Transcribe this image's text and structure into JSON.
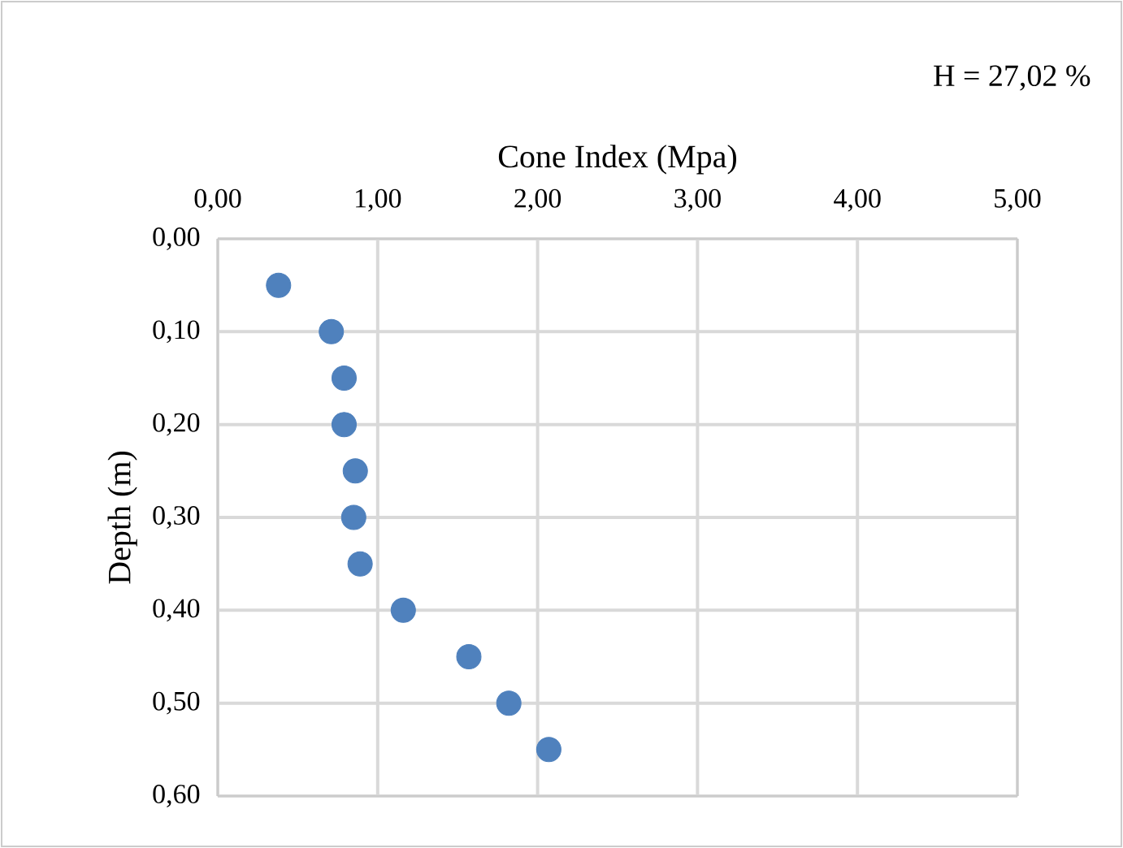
{
  "chart_data": {
    "type": "scatter",
    "xlabel": "Cone Index (Mpa)",
    "ylabel": "Depth (m)",
    "annotations": [
      "H = 27,02 %"
    ],
    "series": [
      {
        "color": "#4f81bd",
        "x": [
          0.38,
          0.71,
          0.79,
          0.79,
          0.86,
          0.85,
          0.89,
          1.16,
          1.57,
          1.82,
          2.07
        ],
        "values": [
          0.05,
          0.1,
          0.15,
          0.2,
          0.25,
          0.3,
          0.35,
          0.4,
          0.45,
          0.5,
          0.55
        ]
      }
    ],
    "xlim": [
      0,
      5
    ],
    "ylim": [
      0.6,
      0
    ],
    "xticks": [
      {
        "value": 0,
        "label": "0,00"
      },
      {
        "value": 1,
        "label": "1,00"
      },
      {
        "value": 2,
        "label": "2,00"
      },
      {
        "value": 3,
        "label": "3,00"
      },
      {
        "value": 4,
        "label": "4,00"
      },
      {
        "value": 5,
        "label": "5,00"
      }
    ],
    "yticks": [
      {
        "value": 0,
        "label": "0,00"
      },
      {
        "value": 0.1,
        "label": "0,10"
      },
      {
        "value": 0.2,
        "label": "0,20"
      },
      {
        "value": 0.3,
        "label": "0,30"
      },
      {
        "value": 0.4,
        "label": "0,40"
      },
      {
        "value": 0.5,
        "label": "0,50"
      },
      {
        "value": 0.6,
        "label": "0,60"
      }
    ],
    "grid": true,
    "marker": "circle"
  }
}
